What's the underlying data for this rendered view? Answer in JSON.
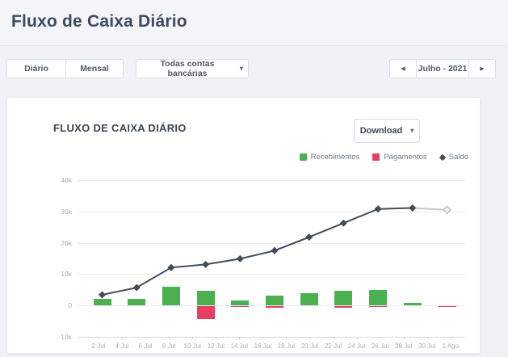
{
  "page": {
    "title": "Fluxo de Caixa Diário"
  },
  "toolbar": {
    "daily_label": "Diário",
    "monthly_label": "Mensal",
    "accounts_filter": "Todas contas bancárias",
    "period": "Julho - 2021"
  },
  "icons": {
    "caret_down": "▾",
    "prev": "◀",
    "next": "▶"
  },
  "card": {
    "title": "FLUXO DE CAIXA DIÁRIO",
    "download_label": "Download"
  },
  "legend": [
    {
      "label": "Recebimentos",
      "color": "#4cb050",
      "marker": "square"
    },
    {
      "label": "Pagamentos",
      "color": "#e83e63",
      "marker": "square"
    },
    {
      "label": "Saldo",
      "color": "#424d57",
      "marker": "diamond"
    }
  ],
  "chart_data": {
    "type": "bar",
    "subtype": "bar+line combo, daily cash flow",
    "title": "FLUXO DE CAIXA DIÁRIO",
    "x_tick_labels": [
      "2 Jul",
      "4 Jul",
      "6 Jul",
      "8 Jul",
      "10 Jul",
      "12 Jul",
      "14 Jul",
      "16 Jul",
      "18 Jul",
      "20 Jul",
      "22 Jul",
      "24 Jul",
      "26 Jul",
      "28 Jul",
      "30 Jul",
      "1 Ago"
    ],
    "points": [
      "2 Jul",
      "5 Jul",
      "8 Jul",
      "11 Jul",
      "14 Jul",
      "17 Jul",
      "20 Jul",
      "23 Jul",
      "26 Jul",
      "29 Jul",
      "1 Ago"
    ],
    "series": [
      {
        "name": "Recebimentos",
        "type": "bar",
        "color": "#4cb050",
        "values": [
          2200,
          2000,
          6100,
          4800,
          1700,
          3100,
          3900,
          4800,
          5000,
          800,
          0
        ]
      },
      {
        "name": "Pagamentos",
        "type": "bar",
        "color": "#e83e63",
        "values": [
          0,
          0,
          0,
          -4200,
          -300,
          -400,
          0,
          -400,
          -150,
          0,
          -300
        ]
      },
      {
        "name": "Saldo",
        "type": "line",
        "color": "#424d57",
        "marker": "diamond",
        "last_point_style": "light-gray (projected)",
        "values": [
          3400,
          5700,
          12100,
          13100,
          14900,
          17500,
          21800,
          26300,
          30800,
          31100,
          30500
        ]
      }
    ],
    "ylim": [
      -10000,
      40000
    ],
    "y_ticks": [
      {
        "value": 40000,
        "label": "40k"
      },
      {
        "value": 30000,
        "label": "30k"
      },
      {
        "value": 20000,
        "label": "20k"
      },
      {
        "value": 10000,
        "label": "10k"
      },
      {
        "value": 0,
        "label": "0"
      },
      {
        "value": -10000,
        "label": "-10k"
      }
    ],
    "grid": "horizontal",
    "legend_position": "top-right",
    "colors": {
      "line_projected": "#c2c8cf",
      "grid": "#ededf1",
      "axis": "#d8dce2",
      "tick_text": "#a6aeb8"
    }
  }
}
